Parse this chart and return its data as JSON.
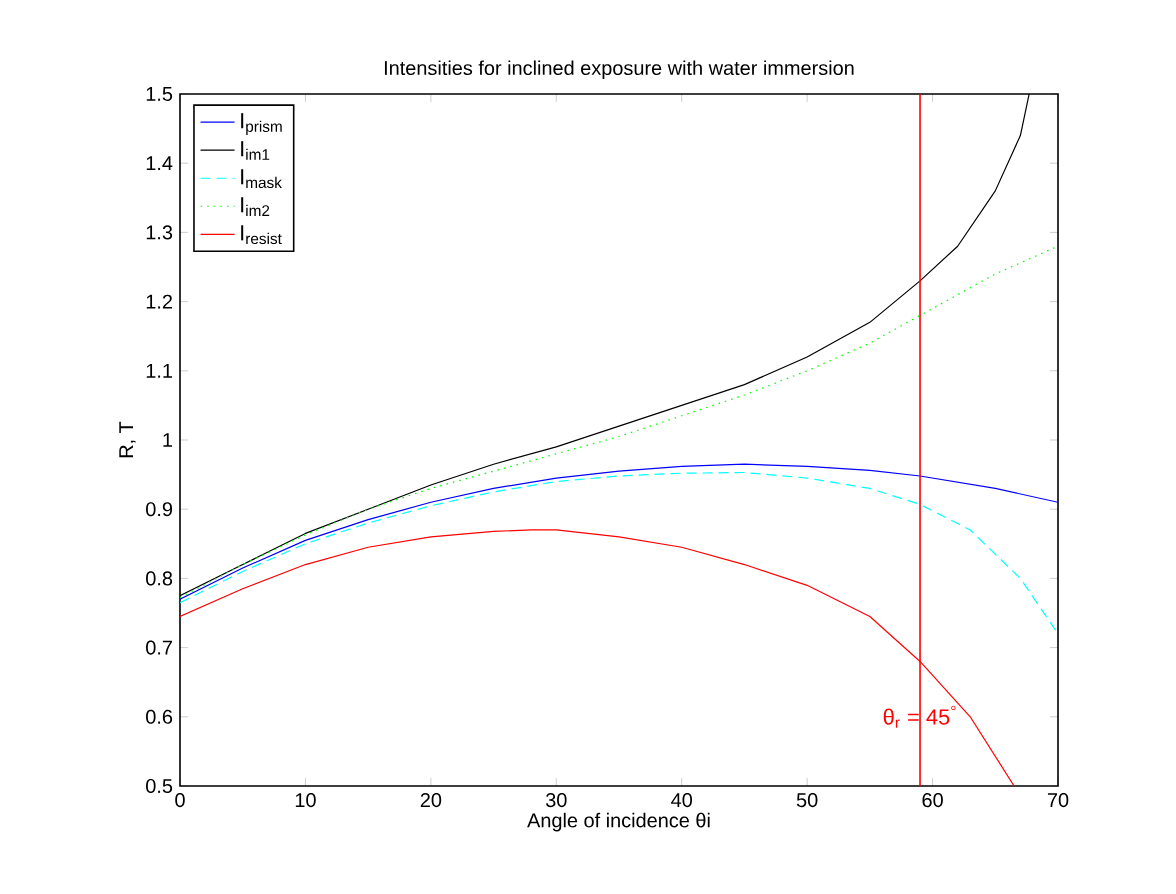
{
  "chart_data": {
    "type": "line",
    "title": "Intensities for inclined exposure with water immersion",
    "xlabel": "Angle of incidence θi",
    "ylabel": "R, T",
    "xlim": [
      0,
      70
    ],
    "ylim": [
      0.5,
      1.5
    ],
    "xticks": [
      0,
      10,
      20,
      30,
      40,
      50,
      60,
      70
    ],
    "yticks": [
      0.5,
      0.6,
      0.7,
      0.8,
      0.9,
      1,
      1.1,
      1.2,
      1.3,
      1.4,
      1.5
    ],
    "legend": "top left",
    "grid": false,
    "marker": "none",
    "ref_lines": [
      {
        "axis": "x",
        "value": 59,
        "color": "#ff0000"
      }
    ],
    "annotations": [
      {
        "text": "θ$_{r}$ = 45$^{°}$",
        "x": 59,
        "y": 0.6
      }
    ],
    "series": [
      {
        "name": "I$_{prism}$",
        "color": "#0000ff",
        "line_style": "solid",
        "x": [
          0,
          5,
          10,
          15,
          20,
          25,
          30,
          35,
          40,
          45,
          50,
          55,
          59,
          65,
          70
        ],
        "values": [
          0.77,
          0.815,
          0.855,
          0.885,
          0.91,
          0.93,
          0.945,
          0.955,
          0.962,
          0.965,
          0.962,
          0.956,
          0.948,
          0.93,
          0.91
        ]
      },
      {
        "name": "I$_{im1}$",
        "color": "#000000",
        "line_style": "solid",
        "x": [
          0,
          5,
          10,
          15,
          20,
          25,
          30,
          35,
          40,
          45,
          50,
          55,
          59,
          62,
          65,
          67,
          67.7
        ],
        "values": [
          0.775,
          0.82,
          0.865,
          0.9,
          0.935,
          0.965,
          0.99,
          1.02,
          1.05,
          1.08,
          1.12,
          1.17,
          1.23,
          1.28,
          1.36,
          1.44,
          1.5
        ]
      },
      {
        "name": "I$_{mask}$",
        "color": "#00ffff",
        "line_style": "dashed",
        "x": [
          0,
          5,
          10,
          15,
          20,
          25,
          30,
          35,
          40,
          45,
          50,
          55,
          59,
          63,
          67,
          70
        ],
        "values": [
          0.765,
          0.81,
          0.85,
          0.88,
          0.905,
          0.925,
          0.94,
          0.948,
          0.952,
          0.953,
          0.945,
          0.93,
          0.907,
          0.87,
          0.8,
          0.72
        ]
      },
      {
        "name": "I$_{im2}$",
        "color": "#00ff00",
        "line_style": "dotted",
        "x": [
          0,
          5,
          10,
          15,
          20,
          25,
          30,
          35,
          40,
          45,
          50,
          55,
          59,
          65,
          70
        ],
        "values": [
          0.772,
          0.82,
          0.863,
          0.9,
          0.93,
          0.955,
          0.98,
          1.005,
          1.035,
          1.065,
          1.1,
          1.14,
          1.18,
          1.24,
          1.28
        ]
      },
      {
        "name": "I$_{resist}$",
        "color": "#ff0000",
        "line_style": "solid",
        "x": [
          0,
          5,
          10,
          15,
          20,
          25,
          28,
          30,
          35,
          40,
          45,
          50,
          55,
          59,
          63,
          66.5
        ],
        "values": [
          0.745,
          0.785,
          0.82,
          0.845,
          0.86,
          0.868,
          0.87,
          0.87,
          0.86,
          0.845,
          0.82,
          0.79,
          0.745,
          0.68,
          0.6,
          0.5
        ]
      }
    ]
  }
}
